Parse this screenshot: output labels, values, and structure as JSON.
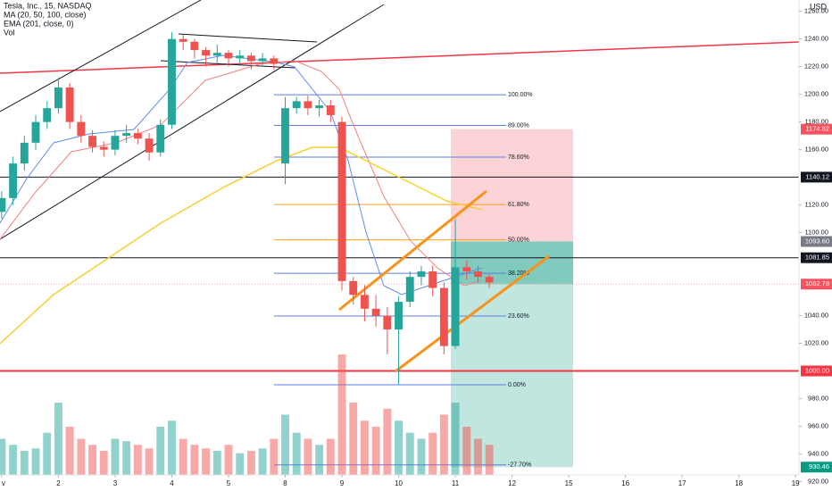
{
  "chart_data": {
    "type": "candlestick",
    "title": "Tesla, Inc., 15, NASDAQ",
    "indicators": [
      "MA (20, 50, 100, close)",
      "EMA (201, close, 0)",
      "Vol"
    ],
    "currency": "USD",
    "up_color": "#26a69a",
    "down_color": "#ef5350",
    "x": [
      0,
      0.2,
      0.4,
      0.6,
      0.8,
      1,
      1.2,
      1.4,
      1.6,
      1.8,
      2,
      2.2,
      2.4,
      2.6,
      2.8,
      3,
      3.2,
      3.4,
      3.6,
      3.8,
      4,
      4.2,
      4.4,
      4.6,
      4.8,
      5,
      5.2,
      5.4,
      5.6,
      5.8,
      6,
      6.2,
      6.4,
      6.6,
      6.8,
      7,
      7.2,
      7.4,
      7.6,
      7.8,
      8,
      8.2,
      8.4,
      8.6
    ],
    "open": [
      1115,
      1125,
      1150,
      1165,
      1180,
      1190,
      1205,
      1180,
      1170,
      1162,
      1160,
      1170,
      1172,
      1168,
      1158,
      1178,
      1240,
      1238,
      1232,
      1228,
      1230,
      1226,
      1228,
      1224,
      1226,
      1150,
      1190,
      1195,
      1190,
      1192,
      1180,
      1065,
      1055,
      1045,
      1040,
      1030,
      1050,
      1068,
      1072,
      1060,
      1018,
      1075,
      1072,
      1068
    ],
    "high": [
      1130,
      1155,
      1170,
      1185,
      1195,
      1212,
      1208,
      1185,
      1174,
      1166,
      1174,
      1178,
      1175,
      1172,
      1182,
      1245,
      1243,
      1240,
      1234,
      1236,
      1232,
      1232,
      1230,
      1230,
      1228,
      1198,
      1198,
      1199,
      1196,
      1196,
      1184,
      1068,
      1062,
      1055,
      1046,
      1054,
      1072,
      1076,
      1076,
      1064,
      1110,
      1080,
      1076,
      1070
    ],
    "low": [
      1110,
      1120,
      1145,
      1160,
      1175,
      1186,
      1175,
      1165,
      1158,
      1155,
      1156,
      1165,
      1164,
      1152,
      1155,
      1175,
      1232,
      1226,
      1220,
      1222,
      1220,
      1222,
      1218,
      1220,
      1218,
      1135,
      1186,
      1185,
      1184,
      1180,
      1058,
      1048,
      1036,
      1032,
      1012,
      990,
      1046,
      1062,
      1054,
      1012,
      1016,
      1066,
      1064,
      1060
    ],
    "close": [
      1125,
      1150,
      1165,
      1180,
      1190,
      1205,
      1180,
      1170,
      1162,
      1160,
      1170,
      1172,
      1168,
      1158,
      1178,
      1240,
      1238,
      1232,
      1228,
      1230,
      1226,
      1228,
      1224,
      1226,
      1222,
      1190,
      1195,
      1190,
      1192,
      1185,
      1065,
      1055,
      1045,
      1040,
      1030,
      1050,
      1068,
      1072,
      1060,
      1018,
      1075,
      1072,
      1068,
      1064
    ],
    "volume": [
      30,
      25,
      20,
      22,
      35,
      60,
      40,
      30,
      25,
      20,
      30,
      28,
      25,
      22,
      40,
      45,
      30,
      25,
      22,
      20,
      25,
      18,
      20,
      22,
      30,
      50,
      35,
      30,
      25,
      30,
      100,
      60,
      45,
      40,
      55,
      45,
      35,
      30,
      35,
      50,
      60,
      40,
      30,
      25
    ],
    "volume_max": 100,
    "xlim": [
      -0.03,
      14.06
    ],
    "xticks": [
      {
        "value": 0,
        "label": "v"
      },
      {
        "value": 1,
        "label": "2"
      },
      {
        "value": 2,
        "label": "3"
      },
      {
        "value": 3,
        "label": "4"
      },
      {
        "value": 4,
        "label": "5"
      },
      {
        "value": 5,
        "label": "8"
      },
      {
        "value": 6,
        "label": "9"
      },
      {
        "value": 7,
        "label": "10"
      },
      {
        "value": 8,
        "label": "11"
      },
      {
        "value": 9,
        "label": "12"
      },
      {
        "value": 10,
        "label": "15"
      },
      {
        "value": 11,
        "label": "16"
      },
      {
        "value": 12,
        "label": "17"
      },
      {
        "value": 13,
        "label": "18"
      },
      {
        "value": 14,
        "label": "19"
      }
    ],
    "ylim": [
      1268.2,
      913.2
    ],
    "yticks": [
      {
        "value": 1260,
        "label": "1260.00"
      },
      {
        "value": 1240,
        "label": "1240.00"
      },
      {
        "value": 1220,
        "label": "1220.00"
      },
      {
        "value": 1200,
        "label": "1200.00"
      },
      {
        "value": 1180,
        "label": "1180.00"
      },
      {
        "value": 1160,
        "label": "1160.00"
      },
      {
        "value": 1120,
        "label": "1120.00"
      },
      {
        "value": 1100,
        "label": "1100.00"
      },
      {
        "value": 1040,
        "label": "1040.00"
      },
      {
        "value": 1020,
        "label": "1020.00"
      },
      {
        "value": 980,
        "label": "980.00"
      },
      {
        "value": 960,
        "label": "960.00"
      },
      {
        "value": 940,
        "label": "940.00"
      },
      {
        "value": 920,
        "label": "920.00"
      }
    ],
    "grid": false,
    "fib": [
      {
        "label": "100.00%",
        "value": 1199.7,
        "color": "#5b7fe6"
      },
      {
        "label": "89.00%",
        "value": 1177.5,
        "color": "#5b7fe6"
      },
      {
        "label": "78.60%",
        "value": 1154.6,
        "color": "#5b7fe6"
      },
      {
        "label": "61.80%",
        "value": 1120.3,
        "color": "#f7a21b"
      },
      {
        "label": "50.00%",
        "value": 1094.8,
        "color": "#f7a21b"
      },
      {
        "label": "38.20%",
        "value": 1070.6,
        "color": "#5b7fe6"
      },
      {
        "label": "23.60%",
        "value": 1039.7,
        "color": "#5b7fe6"
      },
      {
        "label": "0.00%",
        "value": 990,
        "color": "#5b7fe6"
      },
      {
        "label": "-27.70%",
        "value": 932.1,
        "color": "#5b7fe6"
      }
    ],
    "badges": [
      {
        "label": "1174.82",
        "value": 1174.82,
        "color": "#f7525f",
        "line": null
      },
      {
        "label": "1140.12",
        "value": 1140.12,
        "color": "#131722",
        "line": "#131722"
      },
      {
        "label": "1093.60",
        "value": 1093.6,
        "color": "#787b86",
        "line": null
      },
      {
        "label": "1081.85",
        "value": 1081.85,
        "color": "#131722",
        "line": "#131722"
      },
      {
        "label": "1062.78",
        "value": 1062.78,
        "color": "#f7525f",
        "line": "#f7a9ae"
      },
      {
        "label": "1000.00",
        "value": 1000,
        "color": "#f23645",
        "line": "#f23645"
      },
      {
        "label": "930.46",
        "value": 930.46,
        "color": "#089981",
        "line": null
      }
    ]
  }
}
